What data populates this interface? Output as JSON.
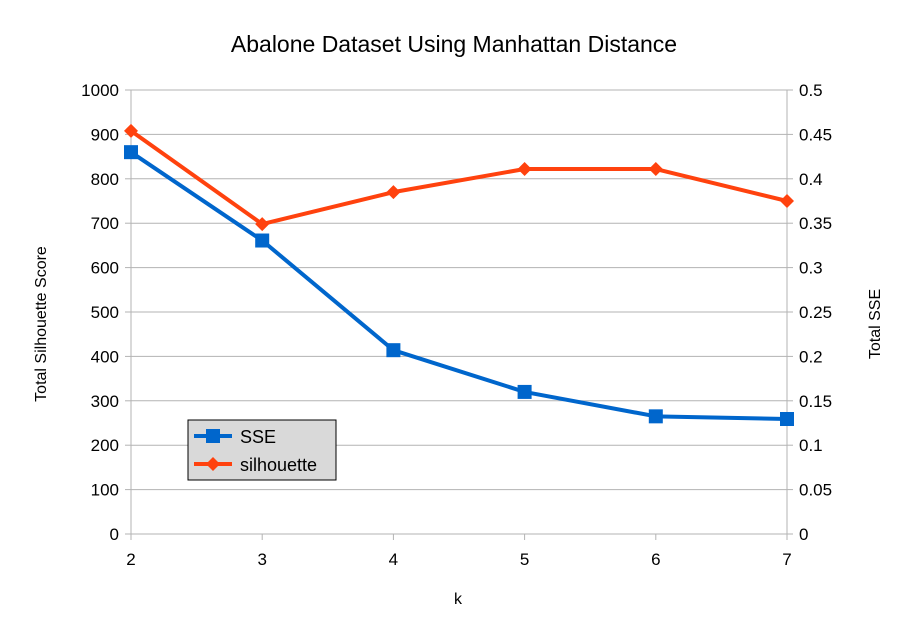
{
  "chart_data": {
    "type": "line",
    "title": "Abalone Dataset Using Manhattan Distance",
    "xlabel": "k",
    "ylabel_left": "Total Silhouette Score",
    "ylabel_right": "Total SSE",
    "x": [
      2,
      3,
      4,
      5,
      6,
      7
    ],
    "ylim_left": [
      0,
      1000
    ],
    "yticks_left": [
      "0",
      "100",
      "200",
      "300",
      "400",
      "500",
      "600",
      "700",
      "800",
      "900",
      "1000"
    ],
    "ylim_right": [
      0,
      0.5
    ],
    "yticks_right": [
      "0",
      "0.05",
      "0.1",
      "0.15",
      "0.2",
      "0.25",
      "0.3",
      "0.35",
      "0.4",
      "0.45",
      "0.5"
    ],
    "grid": "horizontal",
    "legend_position": "bottom-left",
    "series": [
      {
        "name": "SSE",
        "axis": "left",
        "marker": "square",
        "color": "#0066cc",
        "values": [
          860,
          661,
          414,
          320,
          265,
          259
        ]
      },
      {
        "name": "silhouette",
        "axis": "right",
        "marker": "diamond",
        "color": "#ff420e",
        "values": [
          0.454,
          0.349,
          0.385,
          0.411,
          0.411,
          0.375
        ]
      }
    ]
  }
}
